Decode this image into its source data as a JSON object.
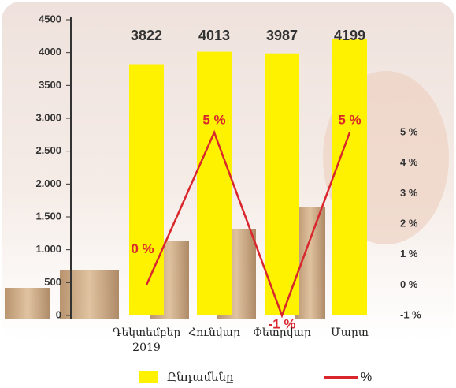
{
  "chart_data": {
    "type": "bar",
    "categories": [
      "Դեկտեմբեր\n2019",
      "Հունվար",
      "Փետրվար",
      "Մարտ"
    ],
    "series": [
      {
        "name": "Ընդամենը",
        "type": "bar",
        "color": "#fff200",
        "values": [
          3822,
          4013,
          3987,
          4199
        ]
      },
      {
        "name": "%",
        "type": "line",
        "axis": "y2",
        "color": "#d8262c",
        "values": [
          0,
          5,
          -1,
          5
        ],
        "value_labels": [
          "0 %",
          "5 %",
          "-1 %",
          "5 %"
        ]
      }
    ],
    "ylim": [
      0,
      4500
    ],
    "yticks": [
      0,
      500,
      {
        "value": 1000,
        "label": "1.000"
      },
      {
        "value": 1500,
        "label": "1.500"
      },
      {
        "value": 2000,
        "label": "2.000"
      },
      {
        "value": 2500,
        "label": "2.500"
      },
      {
        "value": 3000,
        "label": "3.000"
      },
      3500,
      4000,
      4500
    ],
    "y2lim": [
      -1,
      5
    ],
    "y2ticks": [
      {
        "value": -1,
        "label": "-1 %"
      },
      {
        "value": 0,
        "label": "0 %"
      },
      {
        "value": 1,
        "label": "1 %"
      },
      {
        "value": 2,
        "label": "2 %"
      },
      {
        "value": 3,
        "label": "3 %"
      },
      {
        "value": 4,
        "label": "4 %"
      },
      {
        "value": 5,
        "label": "5 %"
      }
    ]
  }
}
